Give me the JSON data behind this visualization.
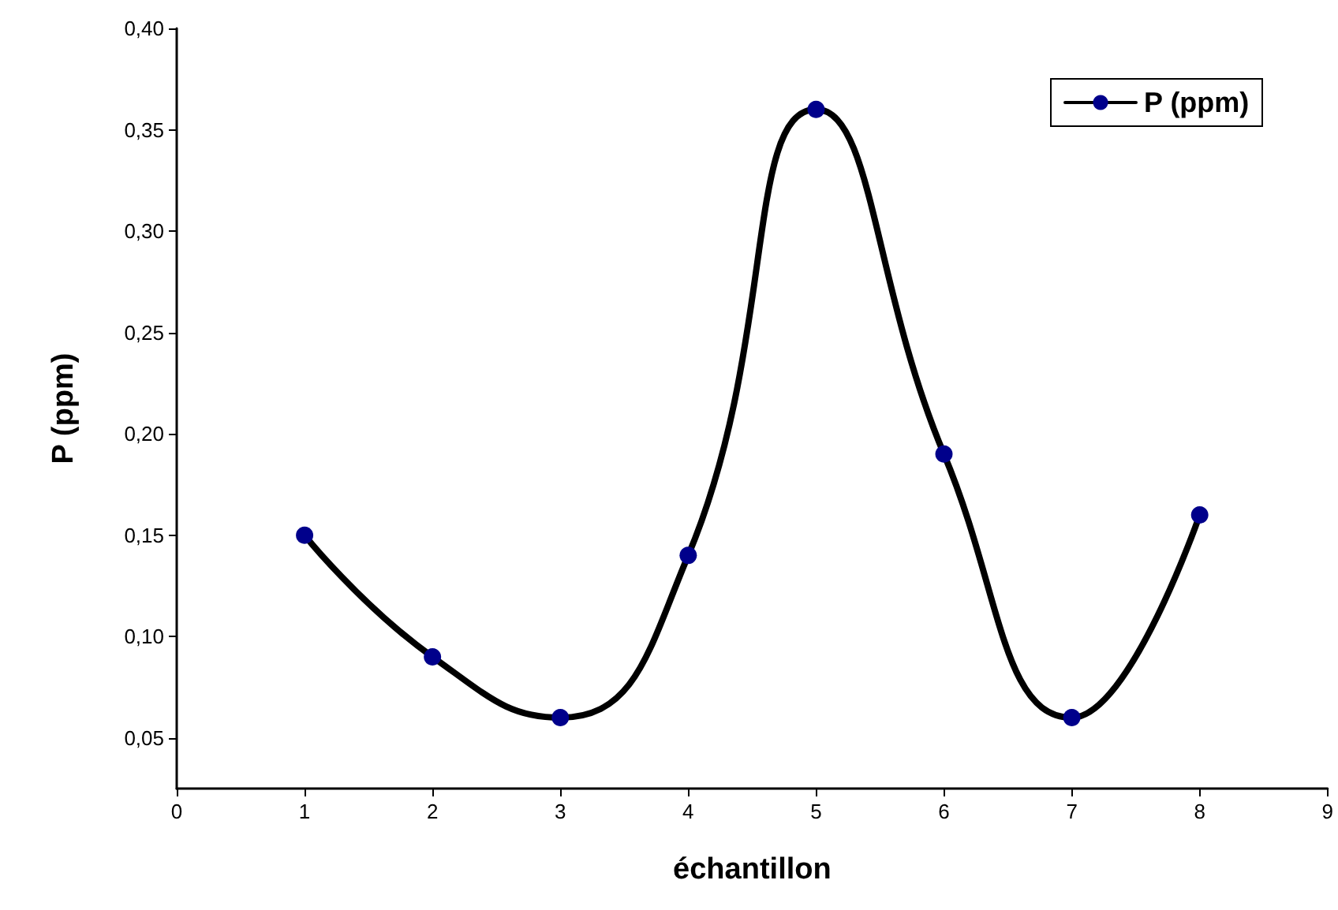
{
  "chart_data": {
    "type": "line",
    "xlabel": "échantillon",
    "ylabel": "P (ppm)",
    "x": [
      1,
      2,
      3,
      4,
      5,
      6,
      7,
      8
    ],
    "series": [
      {
        "name": "P (ppm)",
        "color": "#000000",
        "colors": [
          "#00008b",
          "#00008b",
          "#00008b",
          "#00008b",
          "#00008b",
          "#00008b",
          "#00008b",
          "#00008b"
        ],
        "values": [
          0.15,
          0.09,
          0.06,
          0.14,
          0.36,
          0.19,
          0.06,
          0.16
        ]
      }
    ],
    "xlim": [
      0,
      9
    ],
    "xticks": [
      0,
      1,
      2,
      3,
      4,
      5,
      6,
      7,
      8,
      9
    ],
    "ylim": [
      0.025,
      0.4
    ],
    "yticks": [
      {
        "value": 0.05,
        "label": "0,05"
      },
      {
        "value": 0.1,
        "label": "0,10"
      },
      {
        "value": 0.15,
        "label": "0,15"
      },
      {
        "value": 0.2,
        "label": "0,20"
      },
      {
        "value": 0.25,
        "label": "0,25"
      },
      {
        "value": 0.3,
        "label": "0,30"
      },
      {
        "value": 0.35,
        "label": "0,35"
      },
      {
        "value": 0.4,
        "label": "0,40"
      }
    ],
    "grid": false,
    "legend": "top right",
    "marker": "circle",
    "line_style": "solid"
  }
}
